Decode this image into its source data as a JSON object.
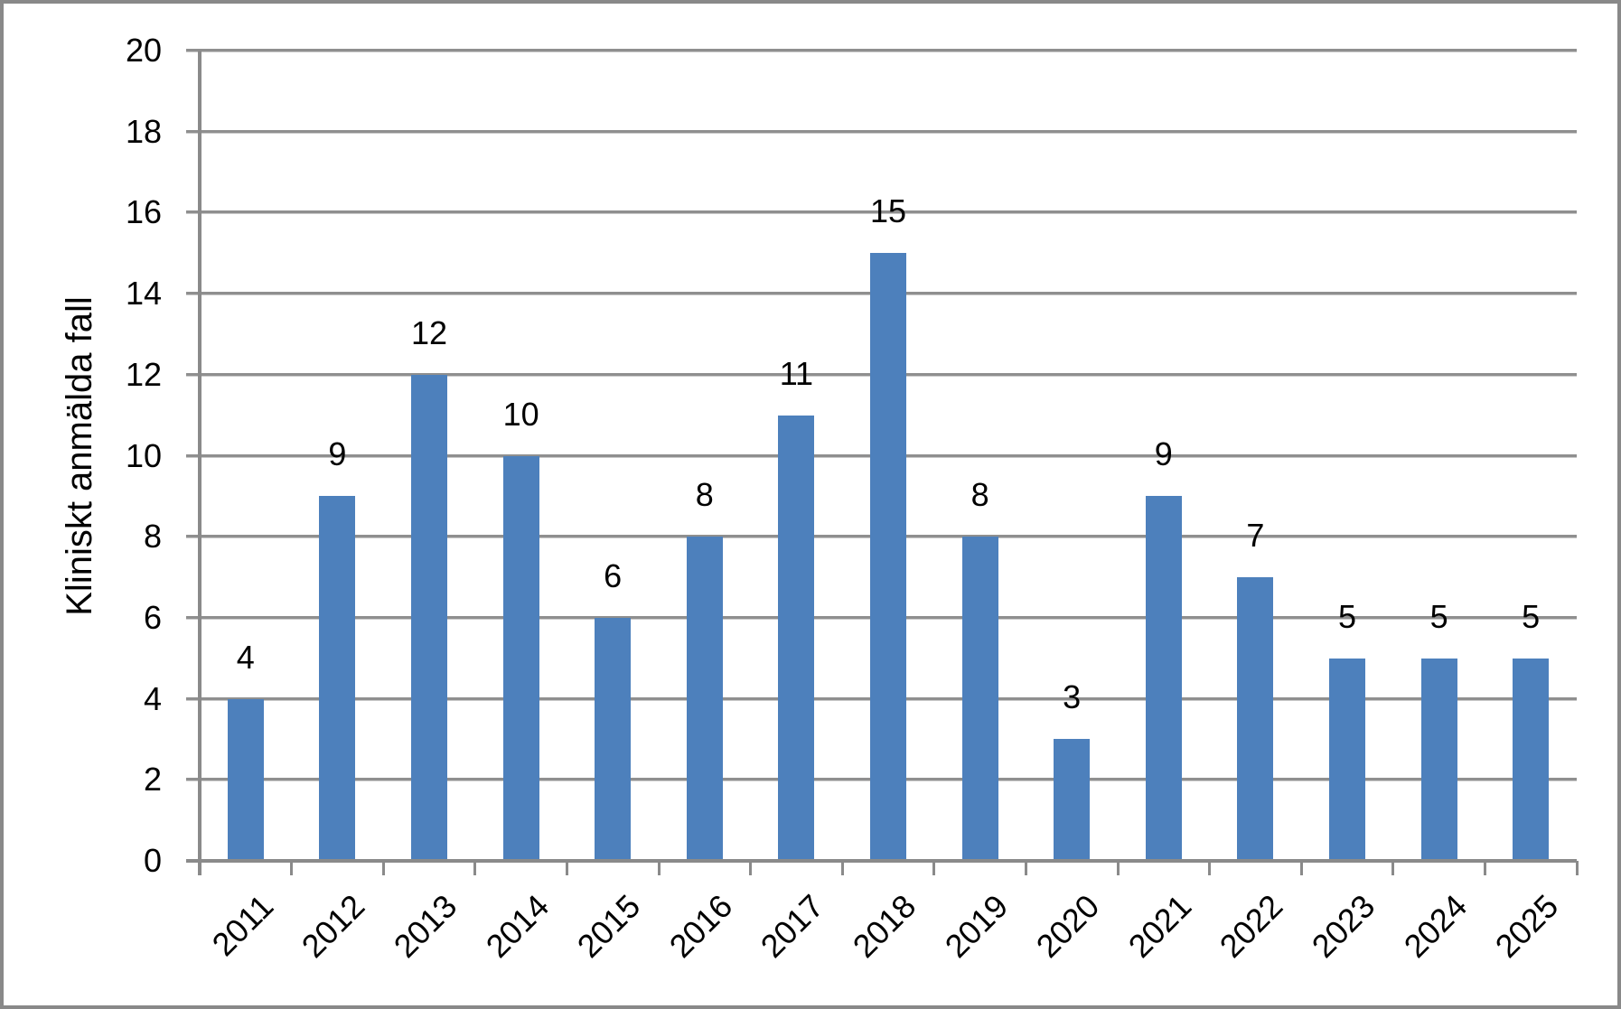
{
  "chart_data": {
    "type": "bar",
    "title": "",
    "xlabel": "",
    "ylabel": "Kliniskt anmälda fall",
    "categories": [
      "2011",
      "2012",
      "2013",
      "2014",
      "2015",
      "2016",
      "2017",
      "2018",
      "2019",
      "2020",
      "2021",
      "2022",
      "2023",
      "2024",
      "2025"
    ],
    "values": [
      4,
      9,
      12,
      10,
      6,
      8,
      11,
      15,
      8,
      3,
      9,
      7,
      5,
      5,
      5
    ],
    "data_labels": [
      "4",
      "9",
      "12",
      "10",
      "6",
      "8",
      "11",
      "15",
      "8",
      "3",
      "9",
      "7",
      "5",
      "5",
      "5"
    ],
    "ylim": [
      0,
      20
    ],
    "ytick_step": 2,
    "ytick_labels": [
      "0",
      "2",
      "4",
      "6",
      "8",
      "10",
      "12",
      "14",
      "16",
      "18",
      "20"
    ],
    "grid": true,
    "legend": "none",
    "colors": {
      "bar_fill": "#4d80bc",
      "gridline": "#8f8f8f",
      "axis": "#8a8a8a",
      "text": "#000000",
      "frame_border": "#898989",
      "background": "#ffffff"
    }
  }
}
